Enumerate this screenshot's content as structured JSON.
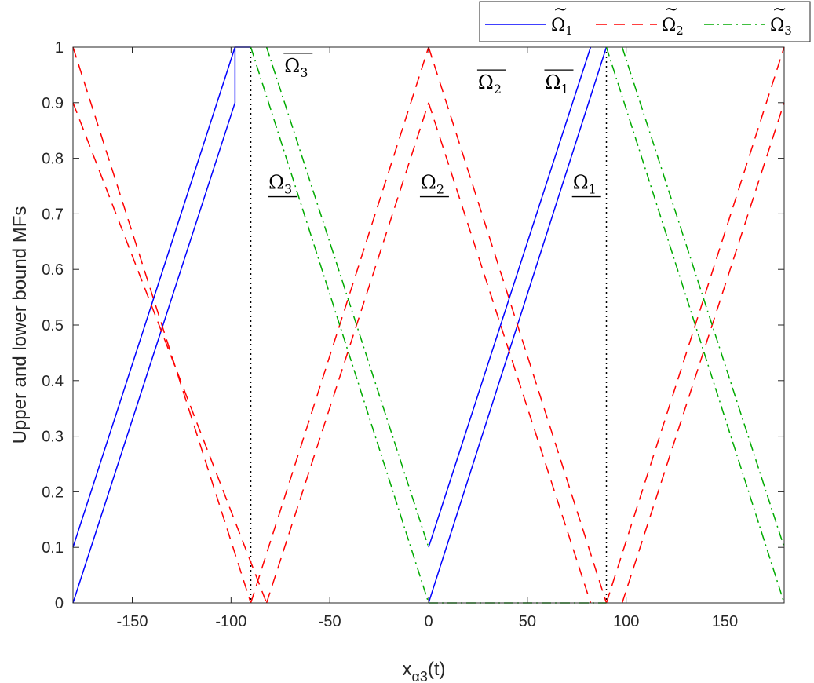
{
  "chart_data": {
    "type": "line",
    "title": "",
    "xlabel": "x",
    "xlabel_sub": "α3",
    "xlabel_suffix": "(t)",
    "ylabel": "Upper and lower bound MFs",
    "xlim": [
      -180,
      180
    ],
    "ylim": [
      0,
      1
    ],
    "xticks": [
      -150,
      -100,
      -50,
      0,
      50,
      100,
      150
    ],
    "xtick_labels": [
      "-150",
      "-100",
      "-50",
      "0",
      "50",
      "100",
      "150"
    ],
    "yticks": [
      0,
      0.1,
      0.2,
      0.3,
      0.4,
      0.5,
      0.6,
      0.7,
      0.8,
      0.9,
      1
    ],
    "ytick_labels": [
      "0",
      "0.1",
      "0.2",
      "0.3",
      "0.4",
      "0.5",
      "0.6",
      "0.7",
      "0.8",
      "0.9",
      "1"
    ],
    "grid": false,
    "legend_position": "top-right",
    "legend": [
      {
        "base": "Ω",
        "sub": "1",
        "color": "#0000ff",
        "dash": "solid"
      },
      {
        "base": "Ω",
        "sub": "2",
        "color": "#ff0000",
        "dash": "dashed"
      },
      {
        "base": "Ω",
        "sub": "3",
        "color": "#00aa00",
        "dash": "dashdot"
      }
    ],
    "series": [
      {
        "color": "#0000ff",
        "dash": "solid",
        "segments": [
          [
            [
              -180,
              0.1
            ],
            [
              -98,
              1
            ]
          ],
          [
            [
              -180,
              0
            ],
            [
              -98,
              0.9
            ],
            [
              -98,
              1
            ],
            [
              -90,
              1
            ]
          ],
          [
            [
              0,
              0.1
            ],
            [
              82,
              1
            ]
          ],
          [
            [
              0,
              0
            ],
            [
              90,
              1
            ]
          ]
        ]
      },
      {
        "color": "#ff0000",
        "dash": "dashed",
        "segments": [
          [
            [
              -180,
              1
            ],
            [
              -90,
              0
            ]
          ],
          [
            [
              -180,
              0.9
            ],
            [
              -82,
              0
            ]
          ],
          [
            [
              -90,
              0
            ],
            [
              0,
              1
            ]
          ],
          [
            [
              -82,
              0
            ],
            [
              0,
              0.9
            ]
          ],
          [
            [
              0,
              1
            ],
            [
              90,
              0
            ]
          ],
          [
            [
              0,
              0.9
            ],
            [
              82,
              0
            ]
          ],
          [
            [
              90,
              0
            ],
            [
              180,
              1
            ]
          ],
          [
            [
              98,
              0
            ],
            [
              180,
              0.9
            ]
          ]
        ]
      },
      {
        "color": "#00aa00",
        "dash": "dashdot",
        "segments": [
          [
            [
              -90,
              1
            ],
            [
              0,
              0
            ]
          ],
          [
            [
              -82,
              1
            ],
            [
              0,
              0.1
            ]
          ],
          [
            [
              0,
              0
            ],
            [
              90,
              0
            ]
          ],
          [
            [
              90,
              1
            ],
            [
              180,
              0
            ]
          ],
          [
            [
              98,
              1
            ],
            [
              180,
              0.1
            ]
          ]
        ]
      }
    ],
    "reference_lines": [
      -90,
      90
    ],
    "annotations": [
      {
        "base": "Ω",
        "sub": "3",
        "mark": "overline",
        "x": -73,
        "y": 0.955
      },
      {
        "base": "Ω",
        "sub": "2",
        "mark": "overline",
        "x": 25,
        "y": 0.925
      },
      {
        "base": "Ω",
        "sub": "1",
        "mark": "overline",
        "x": 59,
        "y": 0.925
      },
      {
        "base": "Ω",
        "sub": "3",
        "mark": "underline",
        "x": -81,
        "y": 0.745
      },
      {
        "base": "Ω",
        "sub": "2",
        "mark": "underline",
        "x": -4,
        "y": 0.745
      },
      {
        "base": "Ω",
        "sub": "1",
        "mark": "underline",
        "x": 73,
        "y": 0.745
      }
    ]
  }
}
